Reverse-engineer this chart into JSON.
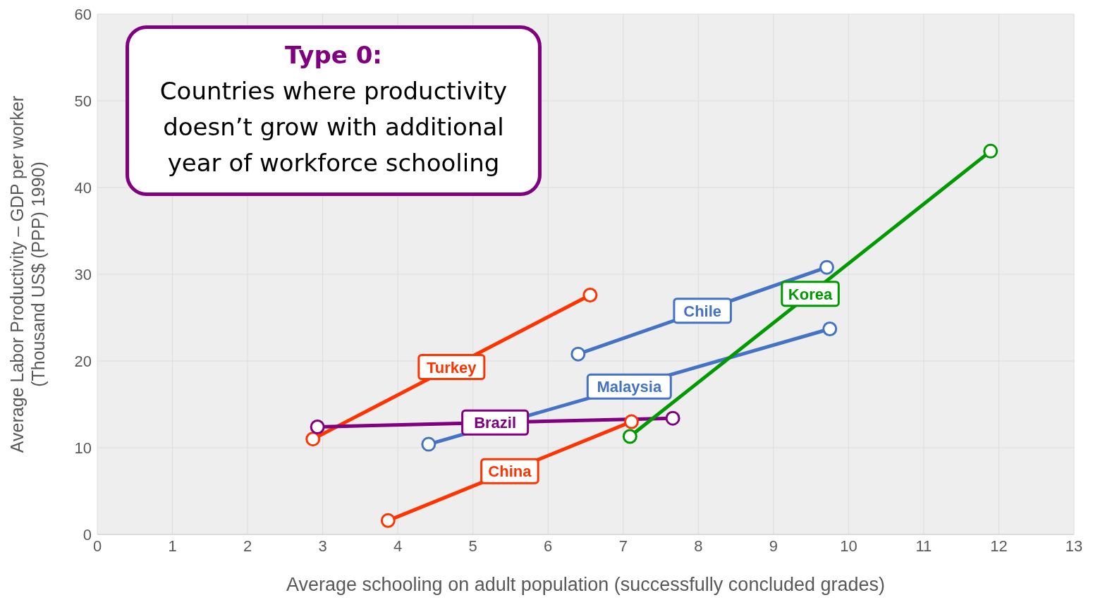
{
  "chart_data": {
    "type": "line",
    "xlabel": "Average schooling on adult population (successfully concluded grades)",
    "ylabel": "Average Labor Productivity – GDP per worker\n(Thousand US$ (PPP) 1990)",
    "annotations": [
      "Type 0:",
      "Countries where productivity doesn’t grow with additional year of workforce schooling"
    ],
    "series": [
      {
        "name": "Turkey",
        "color": "#ff3300",
        "x": [
          2.87,
          6.56
        ],
        "values": [
          11.0,
          27.6
        ]
      },
      {
        "name": "China",
        "color": "#ff3300",
        "x": [
          3.87,
          7.11
        ],
        "values": [
          1.6,
          13.0
        ]
      },
      {
        "name": "Brazil",
        "color": "#800080",
        "x": [
          2.93,
          7.66
        ],
        "values": [
          12.4,
          13.4
        ]
      },
      {
        "name": "Malaysia",
        "color": "#4472c4",
        "x": [
          4.41,
          9.75
        ],
        "values": [
          10.4,
          23.7
        ]
      },
      {
        "name": "Chile",
        "color": "#4472c4",
        "x": [
          6.4,
          9.71
        ],
        "values": [
          20.8,
          30.8
        ]
      },
      {
        "name": "Korea",
        "color": "#009900",
        "x": [
          7.09,
          11.89
        ],
        "values": [
          11.3,
          44.2
        ]
      }
    ],
    "xlim": [
      0,
      13
    ],
    "xticks": [
      0,
      1,
      2,
      3,
      4,
      5,
      6,
      7,
      8,
      9,
      10,
      11,
      12,
      13
    ],
    "ylim": [
      0,
      60
    ],
    "yticks": [
      0,
      10,
      20,
      30,
      40,
      50,
      60
    ],
    "grid": true,
    "legend": false,
    "marker": "circle",
    "line_style": "solid"
  }
}
